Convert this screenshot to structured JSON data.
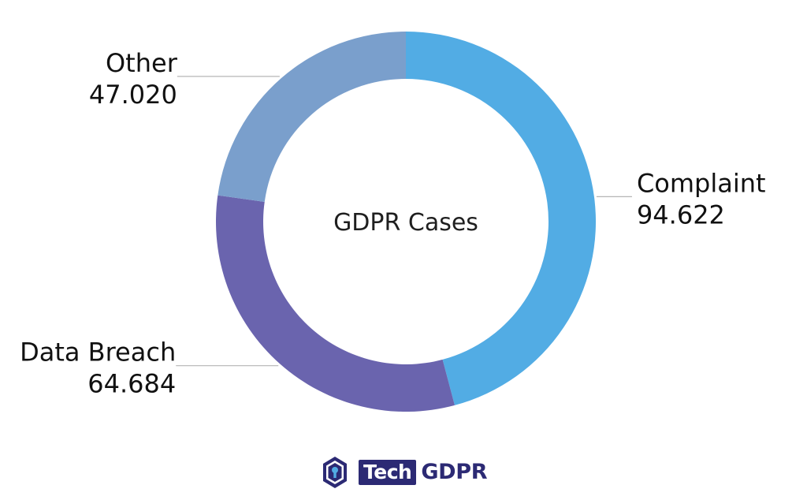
{
  "chart_data": {
    "type": "pie",
    "donut": true,
    "center_label": "GDPR Cases",
    "slices": [
      {
        "label": "Complaint",
        "value_label": "94.622",
        "value": 94622,
        "color": "#52ace4"
      },
      {
        "label": "Data Breach",
        "value_label": "64.684",
        "value": 64684,
        "color": "#6a64ae"
      },
      {
        "label": "Other",
        "value_label": "47.020",
        "value": 47020,
        "color": "#7a9fcc"
      }
    ],
    "start_angle": "12 o'clock",
    "direction": "clockwise"
  },
  "logo": {
    "tech": "Tech",
    "gdpr": "GDPR"
  }
}
